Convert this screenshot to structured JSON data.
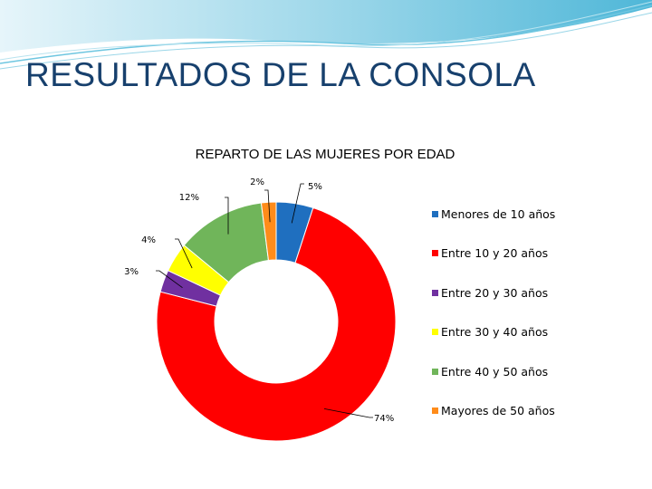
{
  "slide": {
    "title": "RESULTADOS DE LA CONSOLA"
  },
  "colors": {
    "title": "#17406d",
    "wave_dark": "#5bc0de",
    "wave_light": "#bfe6f2"
  },
  "chart_data": {
    "type": "pie",
    "subtype": "donut",
    "title": "REPARTO DE LAS MUJERES POR EDAD",
    "categories": [
      "Menores de 10 años",
      "Entre 10 y 20 años",
      "Entre 20 y 30 años",
      "Entre 30 y 40 años",
      "Entre 40 y 50 años",
      "Mayores de 50 años"
    ],
    "values": [
      5,
      74,
      3,
      4,
      12,
      2
    ],
    "labels": [
      "5%",
      "74%",
      "3%",
      "4%",
      "12%",
      "2%"
    ],
    "colors": [
      "#1f6fbf",
      "#ff0000",
      "#7030a0",
      "#ffff00",
      "#70b55a",
      "#ff8c1a"
    ],
    "legend": "right"
  }
}
